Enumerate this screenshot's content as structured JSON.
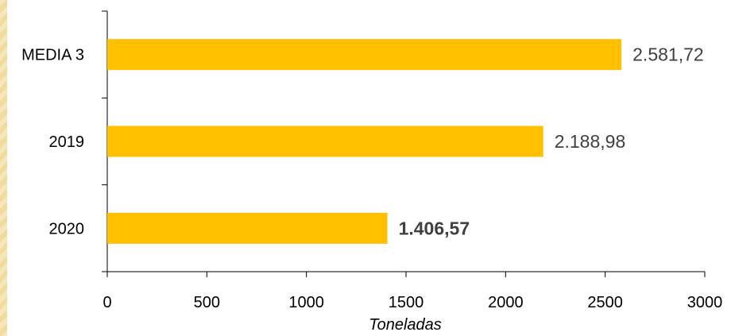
{
  "chart_data": {
    "type": "bar",
    "orientation": "horizontal",
    "categories": [
      "MEDIA 3",
      "2019",
      "2020"
    ],
    "values": [
      2581.72,
      2188.98,
      1406.57
    ],
    "data_labels": [
      "2.581,72",
      "2.188,98",
      "1.406,57"
    ],
    "highlighted_label": "1.406,57",
    "xlabel": "Toneladas",
    "ylabel": "",
    "xlim": [
      0,
      3000
    ],
    "x_ticks": [
      0,
      500,
      1000,
      1500,
      2000,
      2500,
      3000
    ],
    "x_tick_labels": [
      "0",
      "500",
      "1000",
      "1500",
      "2000",
      "2500",
      "3000"
    ],
    "grid": false,
    "legend": "none",
    "bar_color": "#FFC000",
    "data_label_color": "#404040"
  }
}
